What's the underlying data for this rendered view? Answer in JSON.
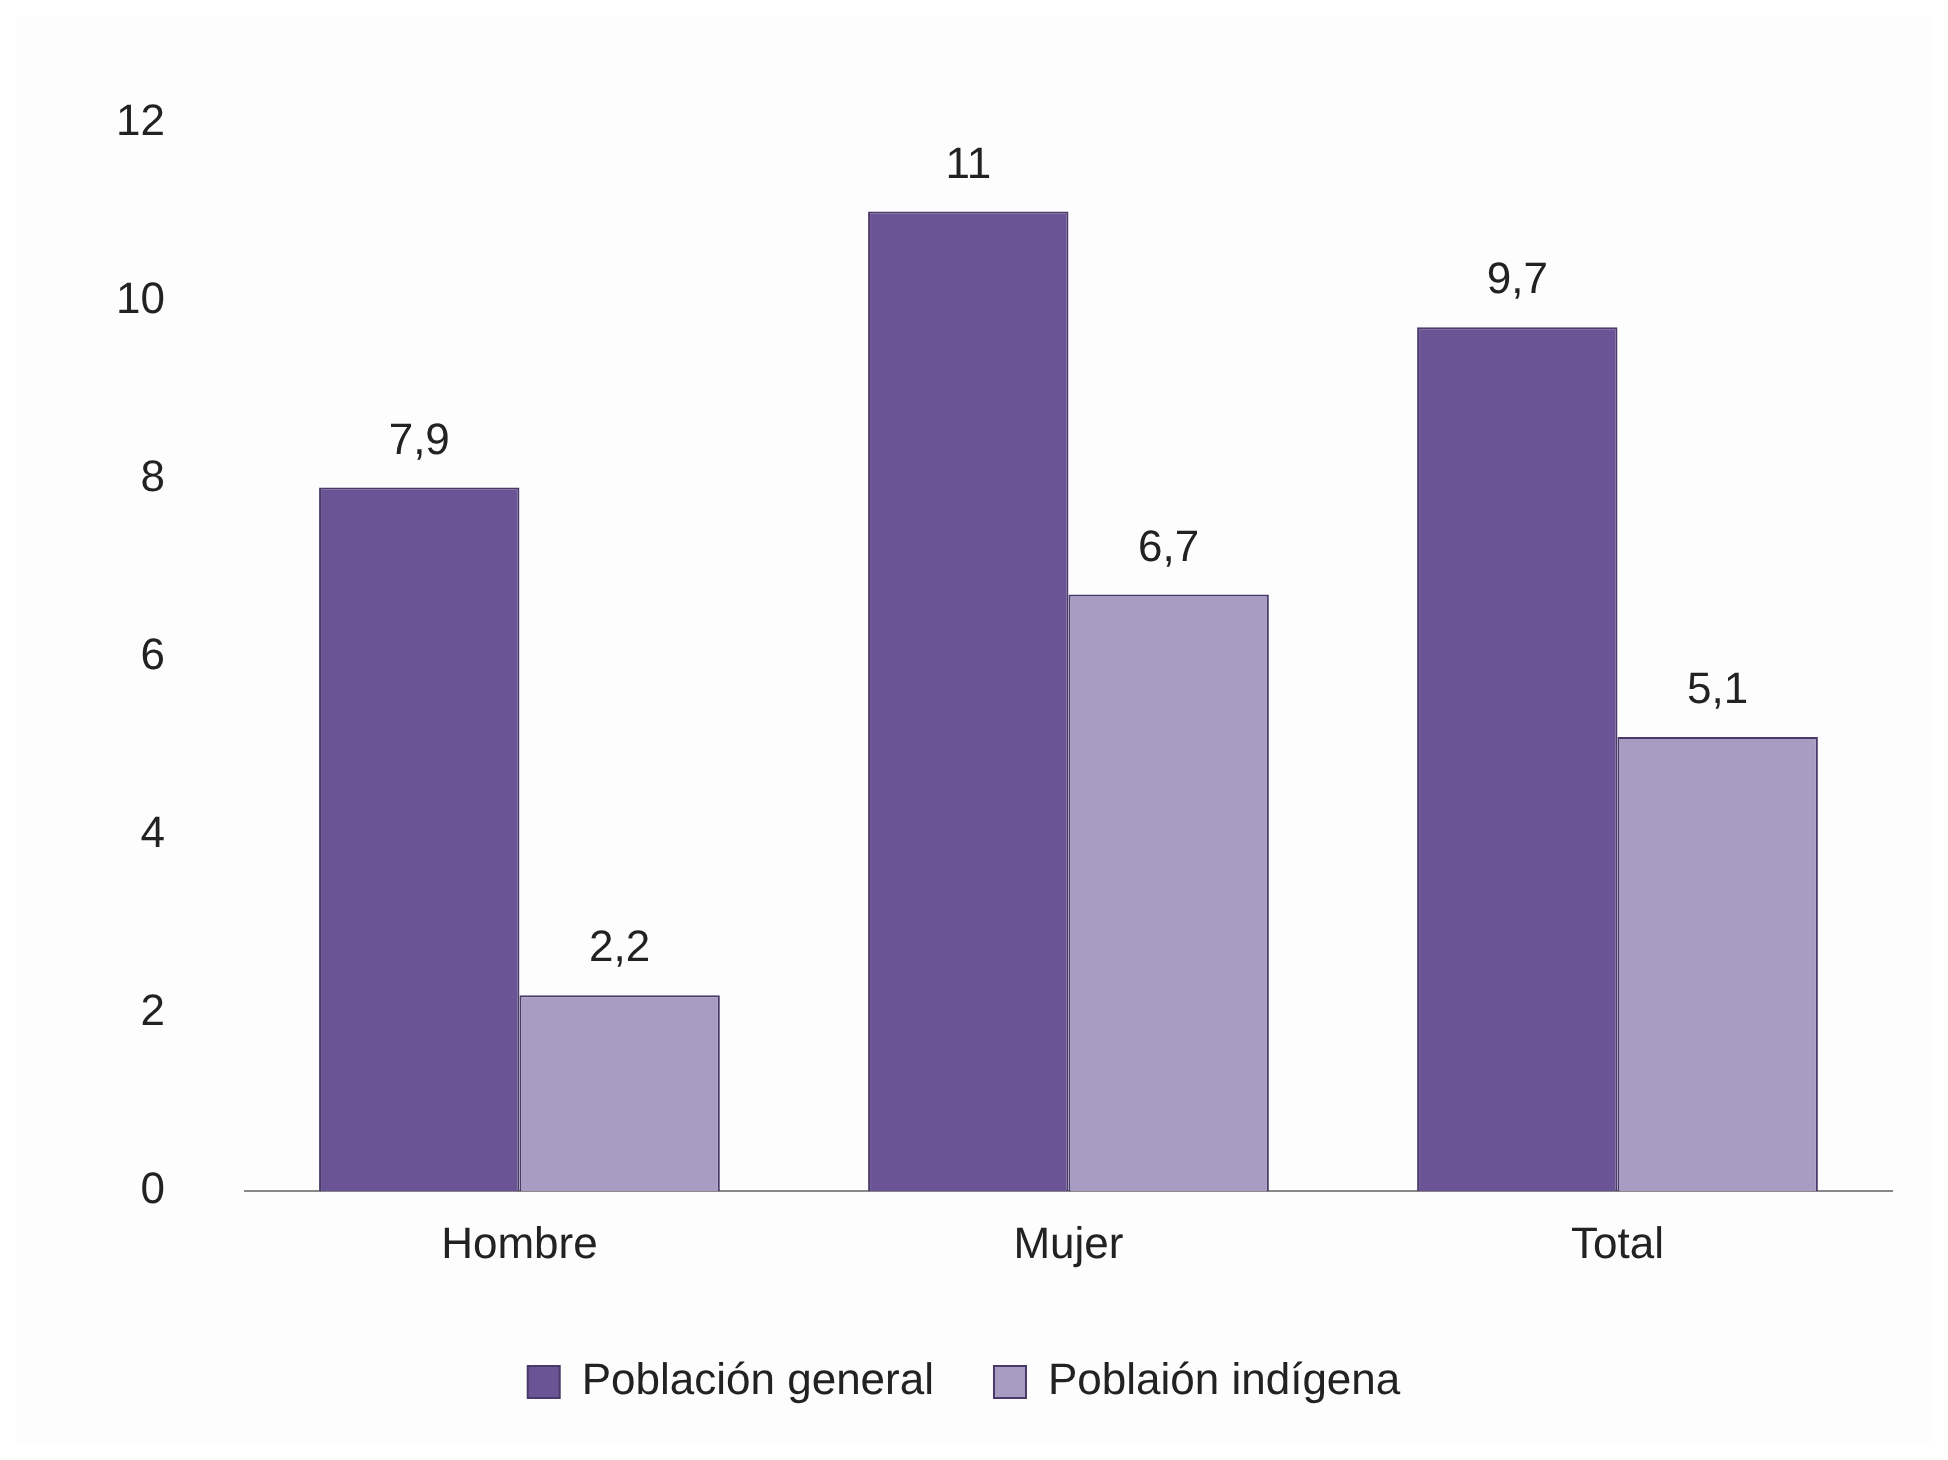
{
  "chart_data": {
    "type": "bar",
    "categories": [
      "Hombre",
      "Mujer",
      "Total"
    ],
    "series": [
      {
        "name": "Población general",
        "color": "#6b5496",
        "values": [
          7.9,
          11,
          9.7
        ],
        "value_labels": [
          "7,9",
          "11",
          "9,7"
        ]
      },
      {
        "name": "Poblaión indígena",
        "color": "#a99cc2",
        "values": [
          2.2,
          6.7,
          5.1
        ],
        "value_labels": [
          "2,2",
          "6,7",
          "5,1"
        ]
      }
    ],
    "ylim": [
      0,
      12
    ],
    "yticks": [
      0,
      2,
      4,
      6,
      8,
      10,
      12
    ],
    "grid": false,
    "legend": "bottom"
  }
}
